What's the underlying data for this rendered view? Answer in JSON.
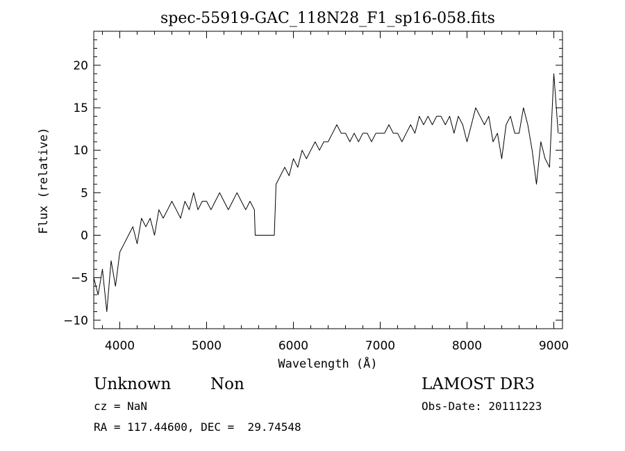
{
  "chart_data": {
    "type": "line",
    "title": "spec-55919-GAC_118N28_F1_sp16-058.fits",
    "xlabel": "Wavelength (Å)",
    "ylabel": "Flux (relative)",
    "xlim": [
      3700,
      9100
    ],
    "ylim": [
      -11,
      24
    ],
    "x_ticks": [
      4000,
      5000,
      6000,
      7000,
      8000,
      9000
    ],
    "y_ticks": [
      -10,
      -5,
      0,
      5,
      10,
      15,
      20
    ],
    "series": [
      {
        "name": "flux",
        "x": [
          3700,
          3750,
          3800,
          3850,
          3900,
          3950,
          4000,
          4050,
          4100,
          4150,
          4200,
          4250,
          4300,
          4350,
          4400,
          4450,
          4500,
          4550,
          4600,
          4650,
          4700,
          4750,
          4800,
          4850,
          4900,
          4950,
          5000,
          5050,
          5100,
          5150,
          5200,
          5250,
          5300,
          5350,
          5400,
          5450,
          5500,
          5550,
          5560,
          5780,
          5800,
          5850,
          5900,
          5950,
          6000,
          6050,
          6100,
          6150,
          6200,
          6250,
          6300,
          6350,
          6400,
          6450,
          6500,
          6550,
          6600,
          6650,
          6700,
          6750,
          6800,
          6850,
          6900,
          6950,
          7000,
          7050,
          7100,
          7150,
          7200,
          7250,
          7300,
          7350,
          7400,
          7450,
          7500,
          7550,
          7600,
          7650,
          7700,
          7750,
          7800,
          7850,
          7900,
          7950,
          8000,
          8050,
          8100,
          8150,
          8200,
          8250,
          8300,
          8350,
          8400,
          8450,
          8500,
          8550,
          8600,
          8650,
          8700,
          8750,
          8800,
          8850,
          8900,
          8950,
          9000,
          9050
        ],
        "values": [
          -5,
          -7,
          -4,
          -9,
          -3,
          -6,
          -2,
          -1,
          0,
          1,
          -1,
          2,
          1,
          2,
          0,
          3,
          2,
          3,
          4,
          3,
          2,
          4,
          3,
          5,
          3,
          4,
          4,
          3,
          4,
          5,
          4,
          3,
          4,
          5,
          4,
          3,
          4,
          3,
          0,
          0,
          6,
          7,
          8,
          7,
          9,
          8,
          10,
          9,
          10,
          11,
          10,
          11,
          11,
          12,
          13,
          12,
          12,
          11,
          12,
          11,
          12,
          12,
          11,
          12,
          12,
          12,
          13,
          12,
          12,
          11,
          12,
          13,
          12,
          14,
          13,
          14,
          13,
          14,
          14,
          13,
          14,
          12,
          14,
          13,
          11,
          13,
          15,
          14,
          13,
          14,
          11,
          12,
          9,
          13,
          14,
          12,
          12,
          15,
          13,
          10,
          6,
          11,
          9,
          8,
          19,
          12
        ]
      }
    ]
  },
  "info": {
    "object_class": "Unknown",
    "subclass": "Non",
    "survey": "LAMOST DR3",
    "redshift": "cz = NaN",
    "obs_date": "Obs-Date: 20111223",
    "coords": "RA = 117.44600, DEC =  29.74548"
  }
}
